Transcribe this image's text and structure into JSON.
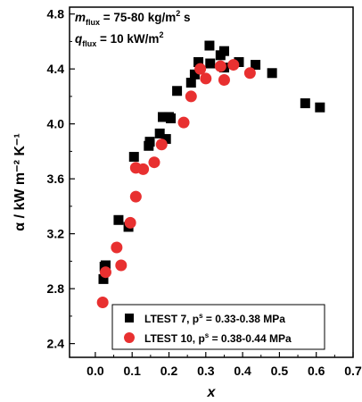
{
  "chart_data": {
    "type": "scatter",
    "xlabel": "x",
    "ylabel": "α / kW m⁻² K⁻¹",
    "xlim": [
      -0.07,
      0.7
    ],
    "ylim": [
      2.3,
      4.85
    ],
    "xticks": [
      "0.0",
      "0.1",
      "0.2",
      "0.3",
      "0.4",
      "0.5",
      "0.6",
      "0.7"
    ],
    "yticks": [
      "2.4",
      "2.8",
      "3.2",
      "3.6",
      "4.0",
      "4.4",
      "4.8"
    ],
    "annotations": [
      {
        "symbol": "m",
        "sub": "flux",
        "text": " = 75-80 kg/m",
        "sup": "2",
        "tail": " s"
      },
      {
        "symbol": "q",
        "sub": "flux",
        "text": " = 10 kW/m",
        "sup": "2",
        "tail": ""
      }
    ],
    "series": [
      {
        "name": "LTEST 7, p",
        "name_sup": "s",
        "name_tail": " = 0.33-0.38 MPa",
        "marker": "square",
        "color": "#000000",
        "x": [
          0.022,
          0.025,
          0.028,
          0.063,
          0.09,
          0.105,
          0.145,
          0.148,
          0.175,
          0.183,
          0.192,
          0.2,
          0.205,
          0.222,
          0.26,
          0.27,
          0.28,
          0.31,
          0.312,
          0.34,
          0.35,
          0.35,
          0.39,
          0.435,
          0.48,
          0.57,
          0.61
        ],
        "y": [
          2.87,
          2.96,
          2.97,
          3.3,
          3.25,
          3.76,
          3.84,
          3.87,
          3.93,
          4.05,
          3.89,
          4.05,
          4.04,
          4.24,
          4.3,
          4.36,
          4.45,
          4.57,
          4.44,
          4.5,
          4.53,
          4.41,
          4.45,
          4.43,
          4.37,
          4.15,
          4.12
        ]
      },
      {
        "name": "LTEST 10, p",
        "name_sup": "s",
        "name_tail": " = 0.38-0.44 MPa",
        "marker": "circle",
        "color": "#e83030",
        "x": [
          0.02,
          0.028,
          0.058,
          0.07,
          0.095,
          0.11,
          0.11,
          0.13,
          0.16,
          0.18,
          0.24,
          0.26,
          0.285,
          0.3,
          0.34,
          0.35,
          0.375,
          0.42
        ],
        "y": [
          2.7,
          2.92,
          3.1,
          2.97,
          3.28,
          3.47,
          3.68,
          3.67,
          3.72,
          3.85,
          4.01,
          4.2,
          4.4,
          4.33,
          4.42,
          4.32,
          4.43,
          4.37
        ]
      }
    ]
  }
}
